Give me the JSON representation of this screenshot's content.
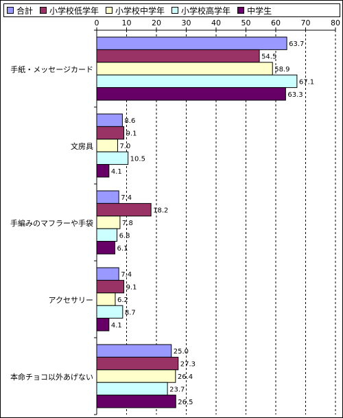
{
  "chart_data": {
    "type": "bar",
    "orientation": "horizontal",
    "categories": [
      "手紙・メッセージカード",
      "文房具",
      "手編みのマフラーや手袋",
      "アクセサリー",
      "本命チョコ以外あげない"
    ],
    "series": [
      {
        "name": "合計",
        "color": "#9999ff",
        "values": [
          63.7,
          8.6,
          7.4,
          7.4,
          25.0
        ],
        "labels": [
          "63.7",
          "8.6",
          "7.4",
          "7.4",
          "25.0"
        ]
      },
      {
        "name": "小学校低学年",
        "color": "#993366",
        "values": [
          54.5,
          9.1,
          18.2,
          9.1,
          27.3
        ],
        "labels": [
          "54.5",
          "9.1",
          "18.2",
          "9.1",
          "27.3"
        ]
      },
      {
        "name": "小学校中学年",
        "color": "#ffffcc",
        "values": [
          58.9,
          7.0,
          7.8,
          6.2,
          26.4
        ],
        "labels": [
          "58.9",
          "7.0",
          "7.8",
          "6.2",
          "26.4"
        ]
      },
      {
        "name": "小学校高学年",
        "color": "#ccffff",
        "values": [
          67.1,
          10.5,
          6.8,
          8.7,
          23.7
        ],
        "labels": [
          "67.1",
          "10.5",
          "6.8",
          "8.7",
          "23.7"
        ]
      },
      {
        "name": "中学生",
        "color": "#660066",
        "values": [
          63.3,
          4.1,
          6.1,
          4.1,
          26.5
        ],
        "labels": [
          "63.3",
          "4.1",
          "6.1",
          "4.1",
          "26.5"
        ]
      }
    ],
    "xlim": [
      0,
      80
    ],
    "xticks": [
      "0",
      "10",
      "20",
      "30",
      "40",
      "50",
      "60",
      "70",
      "80"
    ],
    "grid": true,
    "legend_position": "top"
  }
}
